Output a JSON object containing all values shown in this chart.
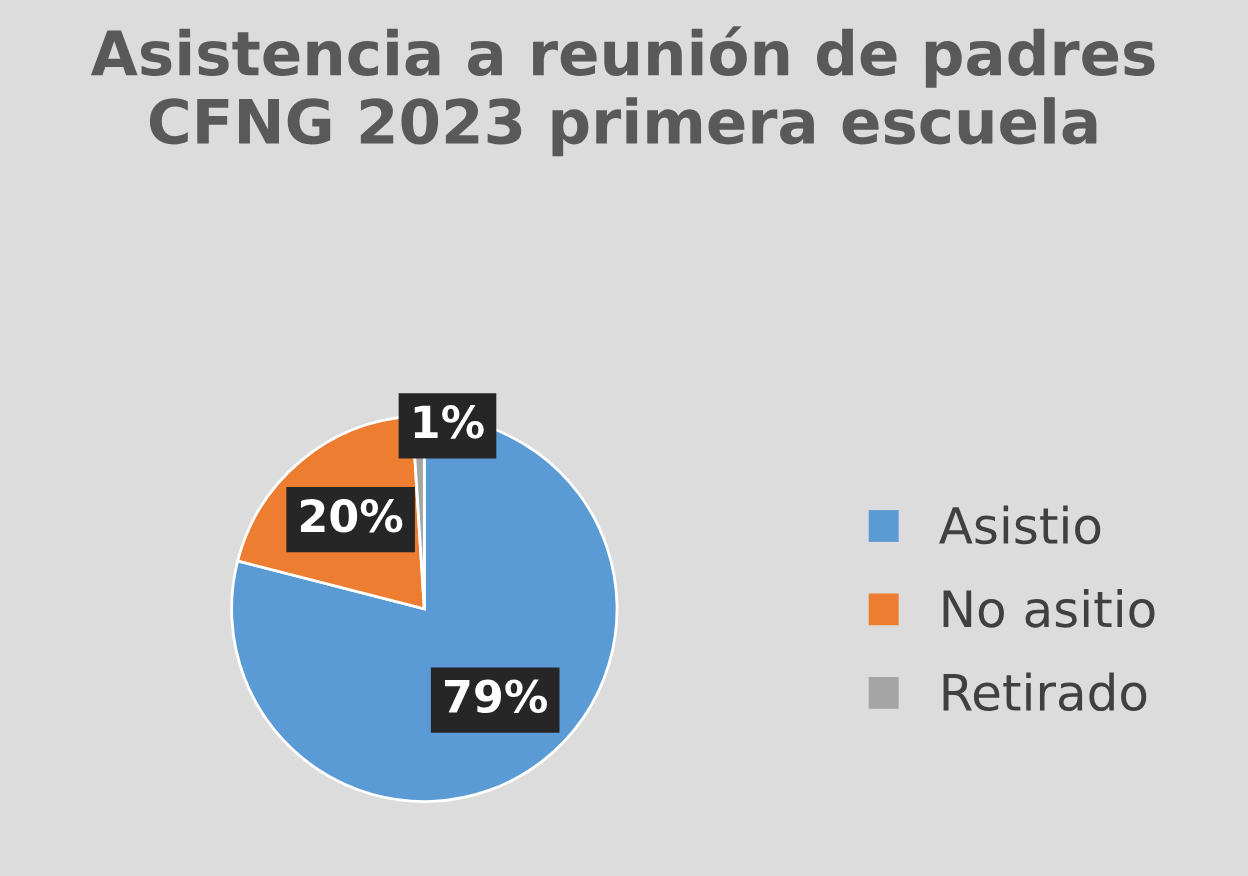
{
  "chart_data": {
    "type": "pie",
    "title": "Asistencia a reunión de padres CFNG 2023 primera escuela",
    "categories": [
      "Asistio",
      "No asitio",
      "Retirado"
    ],
    "values": [
      79,
      20,
      1
    ],
    "colors": [
      "#5b9bd5",
      "#ed7d31",
      "#a5a5a5"
    ],
    "value_labels": [
      "79%",
      "20%",
      "1%"
    ],
    "legend": "right"
  }
}
